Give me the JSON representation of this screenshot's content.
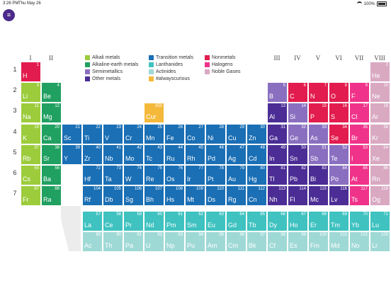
{
  "status": {
    "time": "3:26 PM",
    "date": "Thu May 26",
    "battery": "100%"
  },
  "menu": {
    "icon": "menu-icon",
    "glyph": "≡"
  },
  "groups": [
    "I",
    "II",
    "III",
    "IV",
    "V",
    "VI",
    "VII",
    "VIII"
  ],
  "periods": [
    "1",
    "2",
    "3",
    "4",
    "5",
    "6",
    "7"
  ],
  "legend": [
    {
      "label": "Alkali metals",
      "color": "#9ccc3c"
    },
    {
      "label": "Alkaline-earth metals",
      "color": "#20a061"
    },
    {
      "label": "Semimetallics",
      "color": "#8a6fc0"
    },
    {
      "label": "Other metals",
      "color": "#4b2d95"
    },
    {
      "label": "Transition metals",
      "color": "#1a6fb5"
    },
    {
      "label": "Lanthanides",
      "color": "#3fc2c0"
    },
    {
      "label": "Actinides",
      "color": "#9fd9d6"
    },
    {
      "label": "#alwayscurious",
      "color": "#f4b93b"
    },
    {
      "label": "Nonmetals",
      "color": "#e21c4e"
    },
    {
      "label": "Halogens",
      "color": "#f0338a"
    },
    {
      "label": "Noble Gases",
      "color": "#d9a9c2"
    }
  ],
  "colors": {
    "alkali": "#9ccc3c",
    "alkaline": "#20a061",
    "semi": "#8a6fc0",
    "other": "#4b2d95",
    "transition": "#1a6fb5",
    "lanth": "#3fc2c0",
    "actin": "#9fd9d6",
    "curious": "#f4b93b",
    "nonmetal": "#e21c4e",
    "halogen": "#f0338a",
    "noble": "#d9a9c2"
  },
  "elements": [
    {
      "s": "H",
      "n": "1",
      "c": "nonmetal",
      "col": 1,
      "row": 1
    },
    {
      "s": "He",
      "n": "2",
      "c": "noble",
      "col": 18,
      "row": 1
    },
    {
      "s": "Li",
      "n": "3",
      "c": "alkali",
      "col": 1,
      "row": 2
    },
    {
      "s": "Be",
      "n": "4",
      "c": "alkaline",
      "col": 2,
      "row": 2
    },
    {
      "s": "B",
      "n": "5",
      "c": "semi",
      "col": 13,
      "row": 2
    },
    {
      "s": "C",
      "n": "6",
      "c": "nonmetal",
      "col": 14,
      "row": 2
    },
    {
      "s": "N",
      "n": "7",
      "c": "nonmetal",
      "col": 15,
      "row": 2
    },
    {
      "s": "O",
      "n": "8",
      "c": "nonmetal",
      "col": 16,
      "row": 2
    },
    {
      "s": "F",
      "n": "9",
      "c": "halogen",
      "col": 17,
      "row": 2
    },
    {
      "s": "Ne",
      "n": "10",
      "c": "noble",
      "col": 18,
      "row": 2
    },
    {
      "s": "Na",
      "n": "11",
      "c": "alkali",
      "col": 1,
      "row": 3
    },
    {
      "s": "Mg",
      "n": "12",
      "c": "alkaline",
      "col": 2,
      "row": 3
    },
    {
      "s": "Cur",
      "n": "350",
      "c": "curious",
      "col": 7,
      "row": 3
    },
    {
      "s": "Al",
      "n": "13",
      "c": "other",
      "col": 13,
      "row": 3
    },
    {
      "s": "Si",
      "n": "14",
      "c": "semi",
      "col": 14,
      "row": 3
    },
    {
      "s": "P",
      "n": "15",
      "c": "nonmetal",
      "col": 15,
      "row": 3
    },
    {
      "s": "S",
      "n": "16",
      "c": "nonmetal",
      "col": 16,
      "row": 3
    },
    {
      "s": "Cl",
      "n": "17",
      "c": "halogen",
      "col": 17,
      "row": 3
    },
    {
      "s": "Ar",
      "n": "18",
      "c": "noble",
      "col": 18,
      "row": 3
    },
    {
      "s": "K",
      "n": "19",
      "c": "alkali",
      "col": 1,
      "row": 4
    },
    {
      "s": "Ca",
      "n": "20",
      "c": "alkaline",
      "col": 2,
      "row": 4
    },
    {
      "s": "Sc",
      "n": "21",
      "c": "transition",
      "col": 3,
      "row": 4
    },
    {
      "s": "Ti",
      "n": "22",
      "c": "transition",
      "col": 4,
      "row": 4
    },
    {
      "s": "V",
      "n": "23",
      "c": "transition",
      "col": 5,
      "row": 4
    },
    {
      "s": "Cr",
      "n": "24",
      "c": "transition",
      "col": 6,
      "row": 4
    },
    {
      "s": "Mn",
      "n": "25",
      "c": "transition",
      "col": 7,
      "row": 4
    },
    {
      "s": "Fe",
      "n": "26",
      "c": "transition",
      "col": 8,
      "row": 4
    },
    {
      "s": "Co",
      "n": "27",
      "c": "transition",
      "col": 9,
      "row": 4
    },
    {
      "s": "Ni",
      "n": "28",
      "c": "transition",
      "col": 10,
      "row": 4
    },
    {
      "s": "Cu",
      "n": "29",
      "c": "transition",
      "col": 11,
      "row": 4
    },
    {
      "s": "Zn",
      "n": "30",
      "c": "transition",
      "col": 12,
      "row": 4
    },
    {
      "s": "Ga",
      "n": "31",
      "c": "other",
      "col": 13,
      "row": 4
    },
    {
      "s": "Ge",
      "n": "32",
      "c": "semi",
      "col": 14,
      "row": 4
    },
    {
      "s": "As",
      "n": "33",
      "c": "semi",
      "col": 15,
      "row": 4
    },
    {
      "s": "Se",
      "n": "34",
      "c": "nonmetal",
      "col": 16,
      "row": 4
    },
    {
      "s": "Br",
      "n": "35",
      "c": "halogen",
      "col": 17,
      "row": 4
    },
    {
      "s": "Kr",
      "n": "36",
      "c": "noble",
      "col": 18,
      "row": 4
    },
    {
      "s": "Rb",
      "n": "37",
      "c": "alkali",
      "col": 1,
      "row": 5
    },
    {
      "s": "Sr",
      "n": "38",
      "c": "alkaline",
      "col": 2,
      "row": 5
    },
    {
      "s": "Y",
      "n": "39",
      "c": "transition",
      "col": 3,
      "row": 5
    },
    {
      "s": "Zr",
      "n": "40",
      "c": "transition",
      "col": 4,
      "row": 5
    },
    {
      "s": "Nb",
      "n": "41",
      "c": "transition",
      "col": 5,
      "row": 5
    },
    {
      "s": "Mo",
      "n": "42",
      "c": "transition",
      "col": 6,
      "row": 5
    },
    {
      "s": "Tc",
      "n": "43",
      "c": "transition",
      "col": 7,
      "row": 5
    },
    {
      "s": "Ru",
      "n": "44",
      "c": "transition",
      "col": 8,
      "row": 5
    },
    {
      "s": "Rh",
      "n": "45",
      "c": "transition",
      "col": 9,
      "row": 5
    },
    {
      "s": "Pd",
      "n": "46",
      "c": "transition",
      "col": 10,
      "row": 5
    },
    {
      "s": "Ag",
      "n": "47",
      "c": "transition",
      "col": 11,
      "row": 5
    },
    {
      "s": "Cd",
      "n": "48",
      "c": "transition",
      "col": 12,
      "row": 5
    },
    {
      "s": "In",
      "n": "49",
      "c": "other",
      "col": 13,
      "row": 5
    },
    {
      "s": "Sn",
      "n": "50",
      "c": "other",
      "col": 14,
      "row": 5
    },
    {
      "s": "Sb",
      "n": "51",
      "c": "semi",
      "col": 15,
      "row": 5
    },
    {
      "s": "Te",
      "n": "52",
      "c": "semi",
      "col": 16,
      "row": 5
    },
    {
      "s": "I",
      "n": "53",
      "c": "halogen",
      "col": 17,
      "row": 5
    },
    {
      "s": "Xe",
      "n": "54",
      "c": "noble",
      "col": 18,
      "row": 5
    },
    {
      "s": "Cs",
      "n": "55",
      "c": "alkali",
      "col": 1,
      "row": 6
    },
    {
      "s": "Ba",
      "n": "56",
      "c": "alkaline",
      "col": 2,
      "row": 6
    },
    {
      "s": "Hf",
      "n": "72",
      "c": "transition",
      "col": 4,
      "row": 6
    },
    {
      "s": "Ta",
      "n": "73",
      "c": "transition",
      "col": 5,
      "row": 6
    },
    {
      "s": "W",
      "n": "74",
      "c": "transition",
      "col": 6,
      "row": 6
    },
    {
      "s": "Re",
      "n": "75",
      "c": "transition",
      "col": 7,
      "row": 6
    },
    {
      "s": "Os",
      "n": "76",
      "c": "transition",
      "col": 8,
      "row": 6
    },
    {
      "s": "Ir",
      "n": "77",
      "c": "transition",
      "col": 9,
      "row": 6
    },
    {
      "s": "Pt",
      "n": "78",
      "c": "transition",
      "col": 10,
      "row": 6
    },
    {
      "s": "Au",
      "n": "79",
      "c": "transition",
      "col": 11,
      "row": 6
    },
    {
      "s": "Hg",
      "n": "80",
      "c": "transition",
      "col": 12,
      "row": 6
    },
    {
      "s": "Tl",
      "n": "81",
      "c": "other",
      "col": 13,
      "row": 6
    },
    {
      "s": "Pb",
      "n": "82",
      "c": "other",
      "col": 14,
      "row": 6
    },
    {
      "s": "Bi",
      "n": "83",
      "c": "other",
      "col": 15,
      "row": 6
    },
    {
      "s": "Po",
      "n": "84",
      "c": "semi",
      "col": 16,
      "row": 6
    },
    {
      "s": "At",
      "n": "85",
      "c": "halogen",
      "col": 17,
      "row": 6
    },
    {
      "s": "Rn",
      "n": "86",
      "c": "noble",
      "col": 18,
      "row": 6
    },
    {
      "s": "Fr",
      "n": "87",
      "c": "alkali",
      "col": 1,
      "row": 7
    },
    {
      "s": "Ra",
      "n": "88",
      "c": "alkaline",
      "col": 2,
      "row": 7
    },
    {
      "s": "Rf",
      "n": "104",
      "c": "transition",
      "col": 4,
      "row": 7
    },
    {
      "s": "Db",
      "n": "105",
      "c": "transition",
      "col": 5,
      "row": 7
    },
    {
      "s": "Sg",
      "n": "106",
      "c": "transition",
      "col": 6,
      "row": 7
    },
    {
      "s": "Bh",
      "n": "107",
      "c": "transition",
      "col": 7,
      "row": 7
    },
    {
      "s": "Hs",
      "n": "108",
      "c": "transition",
      "col": 8,
      "row": 7
    },
    {
      "s": "Mt",
      "n": "109",
      "c": "transition",
      "col": 9,
      "row": 7
    },
    {
      "s": "Ds",
      "n": "110",
      "c": "transition",
      "col": 10,
      "row": 7
    },
    {
      "s": "Rg",
      "n": "111",
      "c": "transition",
      "col": 11,
      "row": 7
    },
    {
      "s": "Cn",
      "n": "112",
      "c": "transition",
      "col": 12,
      "row": 7
    },
    {
      "s": "Nh",
      "n": "113",
      "c": "other",
      "col": 13,
      "row": 7
    },
    {
      "s": "Fl",
      "n": "114",
      "c": "other",
      "col": 14,
      "row": 7
    },
    {
      "s": "Mc",
      "n": "115",
      "c": "other",
      "col": 15,
      "row": 7
    },
    {
      "s": "Lv",
      "n": "116",
      "c": "other",
      "col": 16,
      "row": 7
    },
    {
      "s": "Ts",
      "n": "117",
      "c": "halogen",
      "col": 17,
      "row": 7
    },
    {
      "s": "Og",
      "n": "118",
      "c": "noble",
      "col": 18,
      "row": 7
    },
    {
      "s": "La",
      "n": "57",
      "c": "lanth",
      "col": 4,
      "row": 9
    },
    {
      "s": "Ce",
      "n": "58",
      "c": "lanth",
      "col": 5,
      "row": 9
    },
    {
      "s": "Pr",
      "n": "59",
      "c": "lanth",
      "col": 6,
      "row": 9
    },
    {
      "s": "Nd",
      "n": "60",
      "c": "lanth",
      "col": 7,
      "row": 9
    },
    {
      "s": "Pm",
      "n": "61",
      "c": "lanth",
      "col": 8,
      "row": 9
    },
    {
      "s": "Sm",
      "n": "62",
      "c": "lanth",
      "col": 9,
      "row": 9
    },
    {
      "s": "Eu",
      "n": "63",
      "c": "lanth",
      "col": 10,
      "row": 9
    },
    {
      "s": "Gd",
      "n": "64",
      "c": "lanth",
      "col": 11,
      "row": 9
    },
    {
      "s": "Tb",
      "n": "65",
      "c": "lanth",
      "col": 12,
      "row": 9
    },
    {
      "s": "Dy",
      "n": "66",
      "c": "lanth",
      "col": 13,
      "row": 9
    },
    {
      "s": "Ho",
      "n": "67",
      "c": "lanth",
      "col": 14,
      "row": 9
    },
    {
      "s": "Er",
      "n": "68",
      "c": "lanth",
      "col": 15,
      "row": 9
    },
    {
      "s": "Tm",
      "n": "69",
      "c": "lanth",
      "col": 16,
      "row": 9
    },
    {
      "s": "Yb",
      "n": "70",
      "c": "lanth",
      "col": 17,
      "row": 9
    },
    {
      "s": "Lu",
      "n": "71",
      "c": "lanth",
      "col": 18,
      "row": 9
    },
    {
      "s": "Ac",
      "n": "89",
      "c": "actin",
      "col": 4,
      "row": 10
    },
    {
      "s": "Th",
      "n": "90",
      "c": "actin",
      "col": 5,
      "row": 10
    },
    {
      "s": "Pa",
      "n": "91",
      "c": "actin",
      "col": 6,
      "row": 10
    },
    {
      "s": "U",
      "n": "92",
      "c": "actin",
      "col": 7,
      "row": 10
    },
    {
      "s": "Np",
      "n": "93",
      "c": "actin",
      "col": 8,
      "row": 10
    },
    {
      "s": "Pu",
      "n": "94",
      "c": "actin",
      "col": 9,
      "row": 10
    },
    {
      "s": "Am",
      "n": "95",
      "c": "actin",
      "col": 10,
      "row": 10
    },
    {
      "s": "Cm",
      "n": "96",
      "c": "actin",
      "col": 11,
      "row": 10
    },
    {
      "s": "Bk",
      "n": "97",
      "c": "actin",
      "col": 12,
      "row": 10
    },
    {
      "s": "Cf",
      "n": "98",
      "c": "actin",
      "col": 13,
      "row": 10
    },
    {
      "s": "Es",
      "n": "99",
      "c": "actin",
      "col": 14,
      "row": 10
    },
    {
      "s": "Fm",
      "n": "100",
      "c": "actin",
      "col": 15,
      "row": 10
    },
    {
      "s": "Md",
      "n": "101",
      "c": "actin",
      "col": 16,
      "row": 10
    },
    {
      "s": "No",
      "n": "102",
      "c": "actin",
      "col": 17,
      "row": 10
    },
    {
      "s": "Lr",
      "n": "103",
      "c": "actin",
      "col": 18,
      "row": 10
    }
  ]
}
